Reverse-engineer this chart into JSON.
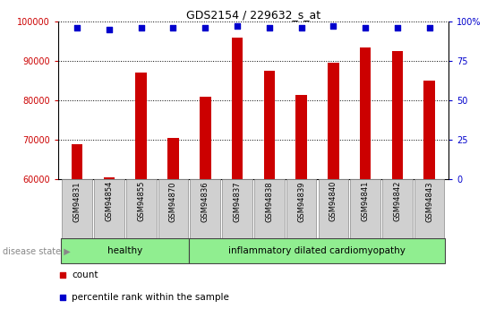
{
  "title": "GDS2154 / 229632_s_at",
  "samples": [
    "GSM94831",
    "GSM94854",
    "GSM94855",
    "GSM94870",
    "GSM94836",
    "GSM94837",
    "GSM94838",
    "GSM94839",
    "GSM94840",
    "GSM94841",
    "GSM94842",
    "GSM94843"
  ],
  "counts": [
    69000,
    60500,
    87000,
    70500,
    81000,
    96000,
    87500,
    81500,
    89500,
    93500,
    92500,
    85000
  ],
  "percentiles": [
    96,
    95,
    96,
    96,
    96,
    97,
    96,
    96,
    97,
    96,
    96,
    96
  ],
  "healthy_count": 4,
  "ylim_left": [
    60000,
    100000
  ],
  "ylim_right": [
    0,
    100
  ],
  "yticks_left": [
    60000,
    70000,
    80000,
    90000,
    100000
  ],
  "yticks_right": [
    0,
    25,
    50,
    75,
    100
  ],
  "bar_color": "#CC0000",
  "dot_color": "#0000CC",
  "healthy_color": "#90EE90",
  "bg_color": "#FFFFFF",
  "bar_bottom": 60000,
  "legend_count_label": "count",
  "legend_pct_label": "percentile rank within the sample",
  "disease_state_label": "disease state",
  "healthy_label": "healthy",
  "disease_label": "inflammatory dilated cardiomyopathy",
  "tick_label_gray": "#C8C8C8",
  "sample_box_color": "#D0D0D0"
}
